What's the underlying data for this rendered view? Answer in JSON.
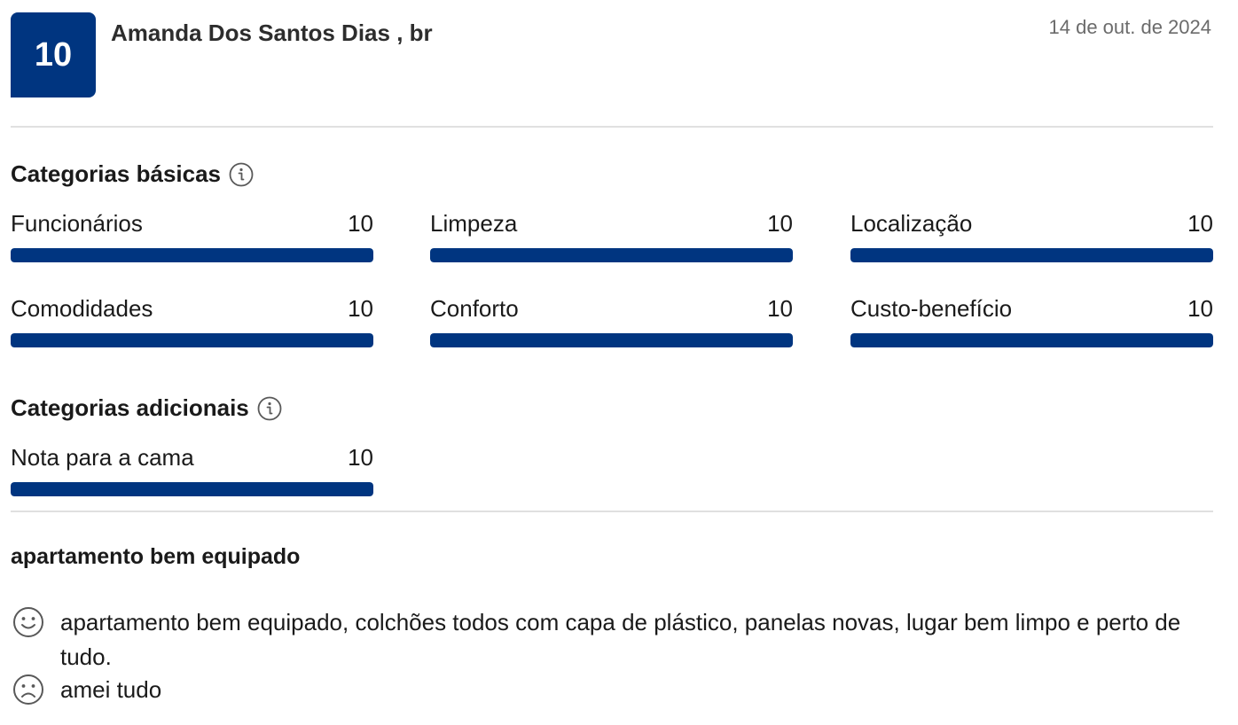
{
  "review": {
    "score": "10",
    "reviewer": "Amanda Dos Santos Dias , br",
    "date": "14 de out. de 2024",
    "title": "apartamento bem equipado",
    "positive": "apartamento bem equipado, colchões todos com capa de plástico, panelas novas, lugar bem limpo e perto de tudo.",
    "negative": "amei tudo"
  },
  "basic_categories": {
    "title": "Categorias básicas",
    "items": [
      {
        "label": "Funcionários",
        "score": "10",
        "fill": 1.0
      },
      {
        "label": "Limpeza",
        "score": "10",
        "fill": 1.0
      },
      {
        "label": "Localização",
        "score": "10",
        "fill": 1.0
      },
      {
        "label": "Comodidades",
        "score": "10",
        "fill": 1.0
      },
      {
        "label": "Conforto",
        "score": "10",
        "fill": 1.0
      },
      {
        "label": "Custo-benefício",
        "score": "10",
        "fill": 1.0
      }
    ]
  },
  "additional_categories": {
    "title": "Categorias adicionais",
    "items": [
      {
        "label": "Nota para a cama",
        "score": "10",
        "fill": 1.0
      }
    ]
  },
  "icons": {
    "info": "info-icon",
    "positive": "smile-icon",
    "negative": "frown-icon"
  },
  "colors": {
    "brand": "#003580",
    "bar_track": "#e7e7e7"
  }
}
